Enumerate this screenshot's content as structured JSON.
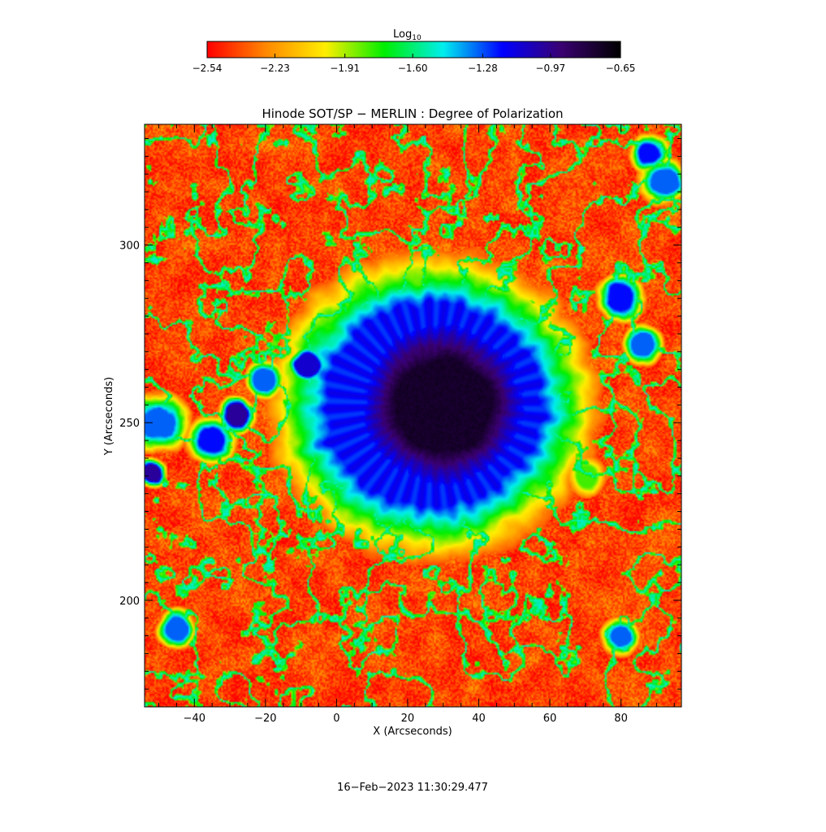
{
  "chart_data": {
    "type": "heatmap",
    "title": "Hinode SOT/SP − MERLIN : Degree of Polarization",
    "xlabel": "X (Arcseconds)",
    "ylabel": "Y (Arcseconds)",
    "xlim": [
      -54,
      97
    ],
    "ylim": [
      170,
      334
    ],
    "x_ticks": [
      -40,
      -20,
      0,
      20,
      40,
      60,
      80
    ],
    "y_ticks": [
      200,
      250,
      300
    ],
    "x_tick_labels": [
      "−40",
      "−20",
      "0",
      "20",
      "40",
      "60",
      "80"
    ],
    "y_tick_labels": [
      "200",
      "250",
      "300"
    ],
    "colorbar": {
      "label_base": "Log",
      "label_sub": "10",
      "min": -2.54,
      "max": -0.65,
      "ticks": [
        -2.54,
        -2.23,
        -1.91,
        -1.6,
        -1.28,
        -0.97,
        -0.65
      ],
      "tick_labels": [
        "−2.54",
        "−2.23",
        "−1.91",
        "−1.60",
        "−1.28",
        "−0.97",
        "−0.65"
      ],
      "colormap": [
        "#ff0000",
        "#ff8800",
        "#ffee00",
        "#00ee00",
        "#00eeee",
        "#0000ff",
        "#3a0070",
        "#000000"
      ]
    },
    "features": {
      "background_level": -2.4,
      "umbra": {
        "center_x": 30,
        "center_y": 255,
        "radius": 16,
        "level": -0.75
      },
      "penumbra": {
        "center_x": 27,
        "center_y": 255,
        "radius_x": 30,
        "radius_y": 28,
        "level": -1.2
      },
      "plage_patches": [
        {
          "x": -50,
          "y": 250,
          "r": 6,
          "level": -1.3
        },
        {
          "x": -35,
          "y": 245,
          "r": 5,
          "level": -1.2
        },
        {
          "x": -28,
          "y": 252,
          "r": 4,
          "level": -1.0
        },
        {
          "x": -52,
          "y": 236,
          "r": 3,
          "level": -1.0
        },
        {
          "x": -8,
          "y": 266,
          "r": 4,
          "level": -1.1
        },
        {
          "x": -20,
          "y": 262,
          "r": 4,
          "level": -1.3
        },
        {
          "x": 80,
          "y": 285,
          "r": 5,
          "level": -1.2
        },
        {
          "x": 86,
          "y": 272,
          "r": 4,
          "level": -1.3
        },
        {
          "x": 92,
          "y": 318,
          "r": 5,
          "level": -1.3
        },
        {
          "x": 88,
          "y": 326,
          "r": 4,
          "level": -1.2
        },
        {
          "x": 80,
          "y": 190,
          "r": 4,
          "level": -1.3
        },
        {
          "x": -45,
          "y": 192,
          "r": 4,
          "level": -1.3
        },
        {
          "x": 70,
          "y": 235,
          "r": 4,
          "level": -1.8
        }
      ]
    },
    "timestamp": "16−Feb−2023 11:30:29.477"
  }
}
